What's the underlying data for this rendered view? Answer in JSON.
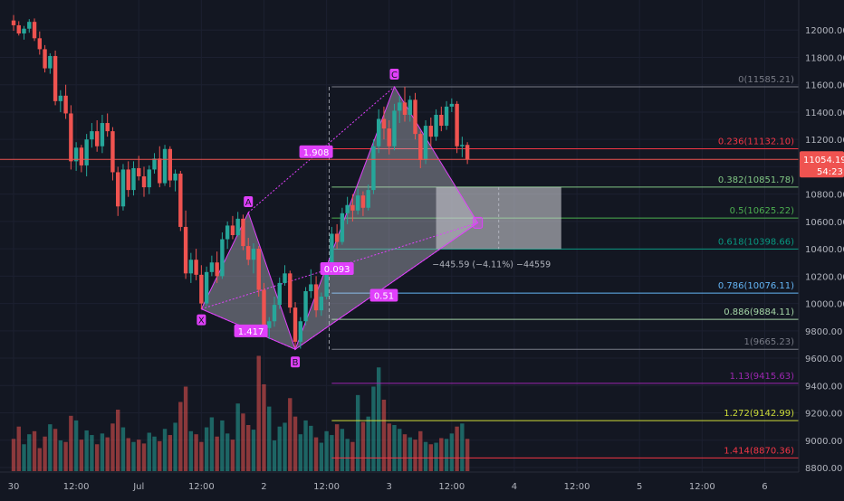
{
  "chart_data": {
    "type": "candlestick",
    "symbol_context": "BTC harmonic pattern (XABCD) with Fibonacci retracement",
    "y_axis": {
      "min": 8800,
      "max": 12200,
      "ticks": [
        "12000.00",
        "11800.00",
        "11600.00",
        "11400.00",
        "11200.00",
        "11000.00",
        "10800.00",
        "10600.00",
        "10400.00",
        "10200.00",
        "10000.00",
        "9800.00",
        "9600.00",
        "9400.00",
        "9200.00",
        "9000.00",
        "8800.00"
      ]
    },
    "x_axis": {
      "ticks": [
        {
          "label": "30",
          "x": 0
        },
        {
          "label": "12:00",
          "x": 12
        },
        {
          "label": "Jul",
          "x": 24
        },
        {
          "label": "12:00",
          "x": 36
        },
        {
          "label": "2",
          "x": 48
        },
        {
          "label": "12:00",
          "x": 60
        },
        {
          "label": "3",
          "x": 72
        },
        {
          "label": "12:00",
          "x": 84
        },
        {
          "label": "4",
          "x": 96
        },
        {
          "label": "12:00",
          "x": 108
        },
        {
          "label": "5",
          "x": 120
        },
        {
          "label": "12:00",
          "x": 132
        },
        {
          "label": "6",
          "x": 144
        }
      ]
    },
    "current_price": {
      "value": 11054.19,
      "label": "11054.19",
      "countdown": "54:23"
    },
    "fib_levels": [
      {
        "ratio": "0",
        "price": 11585.21,
        "label": "0(11585.21)",
        "color": "#787b86"
      },
      {
        "ratio": "0.236",
        "price": 11132.1,
        "label": "0.236(11132.10)",
        "color": "#f23645"
      },
      {
        "ratio": "0.382",
        "price": 10851.78,
        "label": "0.382(10851.78)",
        "color": "#81c784"
      },
      {
        "ratio": "0.5",
        "price": 10625.22,
        "label": "0.5(10625.22)",
        "color": "#4caf50"
      },
      {
        "ratio": "0.618",
        "price": 10398.66,
        "label": "0.618(10398.66)",
        "color": "#089981"
      },
      {
        "ratio": "0.786",
        "price": 10076.11,
        "label": "0.786(10076.11)",
        "color": "#64b5f6"
      },
      {
        "ratio": "0.886",
        "price": 9884.11,
        "label": "0.886(9884.11)",
        "color": "#a5d6a7"
      },
      {
        "ratio": "1",
        "price": 9665.23,
        "label": "1(9665.23)",
        "color": "#787b86"
      },
      {
        "ratio": "1.13",
        "price": 9415.63,
        "label": "1.13(9415.63)",
        "color": "#9c27b0"
      },
      {
        "ratio": "1.272",
        "price": 9142.99,
        "label": "1.272(9142.99)",
        "color": "#cddc39"
      },
      {
        "ratio": "1.414",
        "price": 8870.36,
        "label": "1.414(8870.36)",
        "color": "#f23645"
      }
    ],
    "harmonic_pattern": {
      "points": [
        {
          "name": "X",
          "x": 36,
          "price": 9960
        },
        {
          "name": "A",
          "x": 45,
          "price": 10665
        },
        {
          "name": "B",
          "x": 54,
          "price": 9665
        },
        {
          "name": "C",
          "x": 73,
          "price": 11585
        },
        {
          "name": "D",
          "x": 89,
          "price": 10590
        }
      ],
      "ratios": [
        {
          "label": "1.417",
          "x": 45.5,
          "price": 9800
        },
        {
          "label": "1.908",
          "x": 58,
          "price": 11110
        },
        {
          "label": "0.093",
          "x": 62,
          "price": 10255
        },
        {
          "label": "0.51",
          "x": 71,
          "price": 10060
        }
      ]
    },
    "measure_box": {
      "x_start": 81,
      "x_end": 105,
      "price_top": 10851.78,
      "price_bottom": 10398.66,
      "label": "−445.59 (−4.11%) −44559"
    },
    "candles": [
      {
        "o": 12070,
        "h": 12110,
        "l": 11995,
        "c": 12035
      },
      {
        "o": 12035,
        "h": 12065,
        "l": 11960,
        "c": 11975
      },
      {
        "o": 11975,
        "h": 12030,
        "l": 11930,
        "c": 12010
      },
      {
        "o": 12010,
        "h": 12080,
        "l": 11980,
        "c": 12060
      },
      {
        "o": 12060,
        "h": 12085,
        "l": 11920,
        "c": 11940
      },
      {
        "o": 11940,
        "h": 11990,
        "l": 11820,
        "c": 11860
      },
      {
        "o": 11860,
        "h": 11890,
        "l": 11690,
        "c": 11720
      },
      {
        "o": 11720,
        "h": 11830,
        "l": 11680,
        "c": 11810
      },
      {
        "o": 11810,
        "h": 11850,
        "l": 11450,
        "c": 11480
      },
      {
        "o": 11480,
        "h": 11560,
        "l": 11400,
        "c": 11520
      },
      {
        "o": 11520,
        "h": 11600,
        "l": 11350,
        "c": 11390
      },
      {
        "o": 11390,
        "h": 11450,
        "l": 10980,
        "c": 11040
      },
      {
        "o": 11040,
        "h": 11180,
        "l": 10970,
        "c": 11140
      },
      {
        "o": 11140,
        "h": 11160,
        "l": 10960,
        "c": 11010
      },
      {
        "o": 11010,
        "h": 11240,
        "l": 10930,
        "c": 11200
      },
      {
        "o": 11200,
        "h": 11320,
        "l": 11140,
        "c": 11260
      },
      {
        "o": 11260,
        "h": 11340,
        "l": 11110,
        "c": 11150
      },
      {
        "o": 11150,
        "h": 11380,
        "l": 11100,
        "c": 11320
      },
      {
        "o": 11320,
        "h": 11390,
        "l": 11220,
        "c": 11260
      },
      {
        "o": 11260,
        "h": 11290,
        "l": 10900,
        "c": 10960
      },
      {
        "o": 10960,
        "h": 11000,
        "l": 10640,
        "c": 10710
      },
      {
        "o": 10710,
        "h": 11020,
        "l": 10680,
        "c": 10980
      },
      {
        "o": 10980,
        "h": 11040,
        "l": 10780,
        "c": 10830
      },
      {
        "o": 10830,
        "h": 11040,
        "l": 10790,
        "c": 10990
      },
      {
        "o": 10990,
        "h": 11080,
        "l": 10900,
        "c": 10930
      },
      {
        "o": 10930,
        "h": 11000,
        "l": 10780,
        "c": 10850
      },
      {
        "o": 10850,
        "h": 11010,
        "l": 10800,
        "c": 10980
      },
      {
        "o": 10980,
        "h": 11100,
        "l": 10950,
        "c": 11060
      },
      {
        "o": 11060,
        "h": 11150,
        "l": 10850,
        "c": 10880
      },
      {
        "o": 10880,
        "h": 11160,
        "l": 10860,
        "c": 11130
      },
      {
        "o": 11130,
        "h": 11150,
        "l": 10850,
        "c": 10900
      },
      {
        "o": 10900,
        "h": 10980,
        "l": 10820,
        "c": 10950
      },
      {
        "o": 10950,
        "h": 10970,
        "l": 10530,
        "c": 10560
      },
      {
        "o": 10560,
        "h": 10680,
        "l": 10180,
        "c": 10220
      },
      {
        "o": 10220,
        "h": 10370,
        "l": 10150,
        "c": 10320
      },
      {
        "o": 10320,
        "h": 10400,
        "l": 10170,
        "c": 10210
      },
      {
        "o": 10210,
        "h": 10280,
        "l": 9960,
        "c": 10000
      },
      {
        "o": 10000,
        "h": 10270,
        "l": 9980,
        "c": 10230
      },
      {
        "o": 10230,
        "h": 10350,
        "l": 10200,
        "c": 10300
      },
      {
        "o": 10300,
        "h": 10380,
        "l": 10150,
        "c": 10200
      },
      {
        "o": 10200,
        "h": 10520,
        "l": 10180,
        "c": 10470
      },
      {
        "o": 10470,
        "h": 10600,
        "l": 10400,
        "c": 10570
      },
      {
        "o": 10570,
        "h": 10640,
        "l": 10470,
        "c": 10500
      },
      {
        "o": 10500,
        "h": 10670,
        "l": 10490,
        "c": 10620
      },
      {
        "o": 10620,
        "h": 10650,
        "l": 10390,
        "c": 10420
      },
      {
        "o": 10420,
        "h": 10480,
        "l": 10280,
        "c": 10320
      },
      {
        "o": 10320,
        "h": 10440,
        "l": 10220,
        "c": 10400
      },
      {
        "o": 10400,
        "h": 10420,
        "l": 10050,
        "c": 10100
      },
      {
        "o": 10100,
        "h": 10150,
        "l": 9760,
        "c": 9820
      },
      {
        "o": 9820,
        "h": 9900,
        "l": 9740,
        "c": 9870
      },
      {
        "o": 9870,
        "h": 10050,
        "l": 9830,
        "c": 9990
      },
      {
        "o": 9990,
        "h": 10190,
        "l": 9960,
        "c": 10150
      },
      {
        "o": 10150,
        "h": 10280,
        "l": 10130,
        "c": 10220
      },
      {
        "o": 10220,
        "h": 10240,
        "l": 9930,
        "c": 9970
      },
      {
        "o": 9970,
        "h": 10010,
        "l": 9680,
        "c": 9720
      },
      {
        "o": 9720,
        "h": 9900,
        "l": 9670,
        "c": 9870
      },
      {
        "o": 9870,
        "h": 10120,
        "l": 9840,
        "c": 10090
      },
      {
        "o": 10090,
        "h": 10250,
        "l": 10040,
        "c": 10140
      },
      {
        "o": 10140,
        "h": 10200,
        "l": 9900,
        "c": 9950
      },
      {
        "o": 9950,
        "h": 10080,
        "l": 9910,
        "c": 10050
      },
      {
        "o": 10050,
        "h": 10260,
        "l": 10030,
        "c": 10240
      },
      {
        "o": 10240,
        "h": 10560,
        "l": 10210,
        "c": 10510
      },
      {
        "o": 10510,
        "h": 10580,
        "l": 10400,
        "c": 10450
      },
      {
        "o": 10450,
        "h": 10700,
        "l": 10430,
        "c": 10660
      },
      {
        "o": 10660,
        "h": 10780,
        "l": 10580,
        "c": 10720
      },
      {
        "o": 10720,
        "h": 10800,
        "l": 10600,
        "c": 10680
      },
      {
        "o": 10680,
        "h": 10840,
        "l": 10650,
        "c": 10790
      },
      {
        "o": 10790,
        "h": 10820,
        "l": 10640,
        "c": 10700
      },
      {
        "o": 10700,
        "h": 10870,
        "l": 10680,
        "c": 10830
      },
      {
        "o": 10830,
        "h": 11200,
        "l": 10800,
        "c": 11150
      },
      {
        "o": 11150,
        "h": 11420,
        "l": 11100,
        "c": 11350
      },
      {
        "o": 11350,
        "h": 11440,
        "l": 11200,
        "c": 11280
      },
      {
        "o": 11280,
        "h": 11340,
        "l": 11090,
        "c": 11150
      },
      {
        "o": 11150,
        "h": 11460,
        "l": 11120,
        "c": 11410
      },
      {
        "o": 11410,
        "h": 11520,
        "l": 11320,
        "c": 11470
      },
      {
        "o": 11470,
        "h": 11585,
        "l": 11330,
        "c": 11380
      },
      {
        "o": 11380,
        "h": 11520,
        "l": 11330,
        "c": 11490
      },
      {
        "o": 11490,
        "h": 11540,
        "l": 11200,
        "c": 11240
      },
      {
        "o": 11240,
        "h": 11260,
        "l": 10990,
        "c": 11050
      },
      {
        "o": 11050,
        "h": 11340,
        "l": 11020,
        "c": 11300
      },
      {
        "o": 11300,
        "h": 11360,
        "l": 11150,
        "c": 11220
      },
      {
        "o": 11220,
        "h": 11420,
        "l": 11190,
        "c": 11380
      },
      {
        "o": 11380,
        "h": 11440,
        "l": 11260,
        "c": 11300
      },
      {
        "o": 11300,
        "h": 11480,
        "l": 11270,
        "c": 11440
      },
      {
        "o": 11440,
        "h": 11500,
        "l": 11400,
        "c": 11460
      },
      {
        "o": 11460,
        "h": 11480,
        "l": 11100,
        "c": 11150
      },
      {
        "o": 11150,
        "h": 11220,
        "l": 11070,
        "c": 11160
      },
      {
        "o": 11160,
        "h": 11180,
        "l": 11020,
        "c": 11054
      }
    ],
    "volumes": [
      42,
      58,
      35,
      48,
      52,
      30,
      45,
      61,
      55,
      40,
      38,
      72,
      66,
      41,
      53,
      47,
      35,
      49,
      44,
      62,
      80,
      57,
      43,
      38,
      41,
      36,
      50,
      45,
      39,
      55,
      47,
      63,
      90,
      110,
      52,
      48,
      38,
      57,
      70,
      45,
      66,
      49,
      41,
      88,
      75,
      60,
      54,
      150,
      113,
      84,
      40,
      58,
      63,
      95,
      71,
      48,
      66,
      59,
      44,
      37,
      52,
      47,
      61,
      55,
      42,
      38,
      99,
      64,
      71,
      110,
      135,
      93,
      62,
      60,
      55,
      48,
      44,
      41,
      52,
      38,
      35,
      37,
      43,
      42,
      49,
      58,
      62,
      42
    ]
  }
}
